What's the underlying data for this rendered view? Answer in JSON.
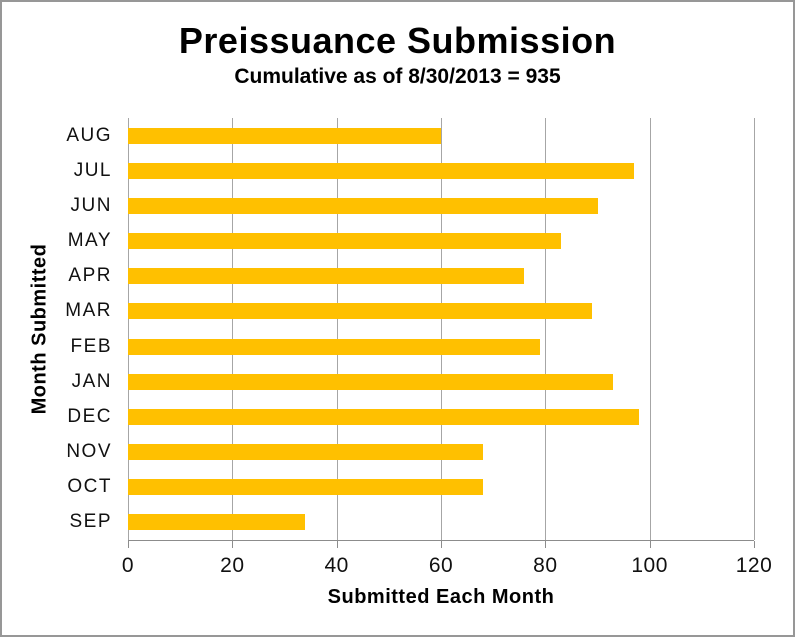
{
  "frame": {
    "background": "#FFFFFF",
    "border_color": "#979797"
  },
  "chart_data": {
    "type": "bar",
    "orientation": "horizontal",
    "title": "Preissuance Submission",
    "subtitle": "Cumulative as of 8/30/2013 = 935",
    "cumulative_total": 935,
    "xlabel": "Submitted Each Month",
    "ylabel": "Month Submitted",
    "categories": [
      "AUG",
      "JUL",
      "JUN",
      "MAY",
      "APR",
      "MAR",
      "FEB",
      "JAN",
      "DEC",
      "NOV",
      "OCT",
      "SEP"
    ],
    "values": [
      60,
      97,
      90,
      83,
      76,
      89,
      79,
      93,
      98,
      68,
      68,
      34
    ],
    "xlim": [
      0,
      120
    ],
    "x_ticks": [
      0,
      20,
      40,
      60,
      80,
      100,
      120
    ],
    "grid": true,
    "legend": false,
    "colors": {
      "bar": "#FFC000",
      "gridline": "#A6A6A6",
      "axis_line": "#8C8C8C",
      "text": "#000000"
    }
  }
}
